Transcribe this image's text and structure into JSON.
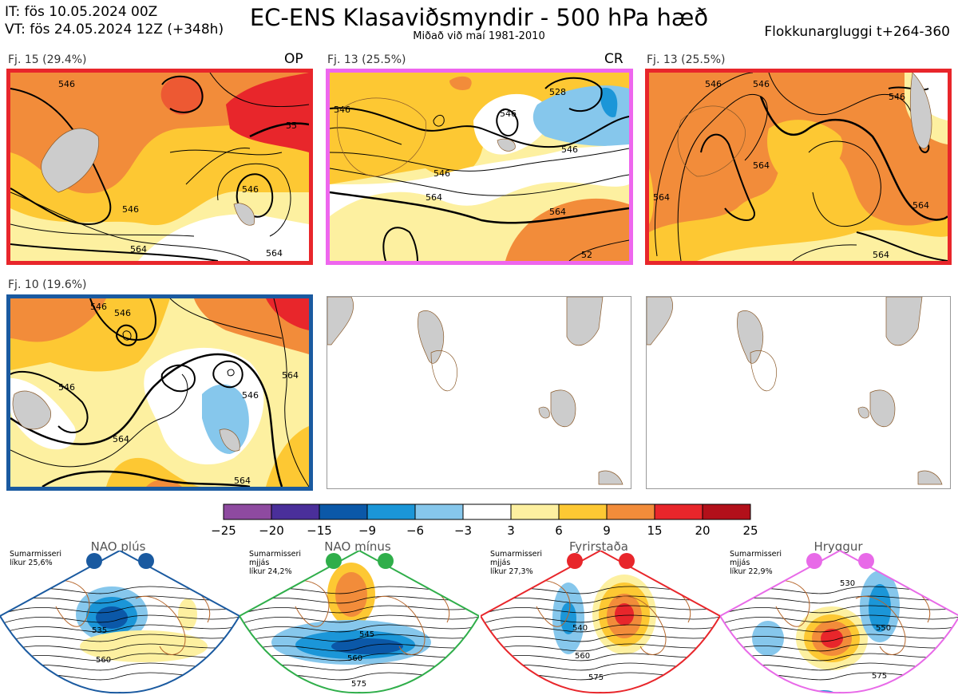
{
  "header": {
    "it_line": "IT: fös 10.05.2024 00Z",
    "vt_line": "VT: fös 24.05.2024 12Z  (+348h)",
    "title": "EC-ENS Klasaviðsmyndir - 500 hPa hæð",
    "subtitle": "Miðað við maí 1981-2010",
    "window": "Flokkunargluggi t+264-360"
  },
  "panels": [
    {
      "label": "Fj. 15 (29.4%)",
      "tag": "OP",
      "frame_color": "#e8262b",
      "empty": false
    },
    {
      "label": "Fj. 13 (25.5%)",
      "tag": "CR",
      "frame_color": "#ee66ee",
      "empty": false
    },
    {
      "label": "Fj. 13 (25.5%)",
      "tag": "",
      "frame_color": "#e8262b",
      "empty": false
    },
    {
      "label": "Fj. 10 (19.6%)",
      "tag": "",
      "frame_color": "#1a5aa0",
      "empty": false
    },
    {
      "label": "",
      "tag": "",
      "frame_color": "#999999",
      "empty": true
    },
    {
      "label": "",
      "tag": "",
      "frame_color": "#999999",
      "empty": true
    }
  ],
  "contour_labels": {
    "p1": [
      "546",
      "546",
      "546",
      "564",
      "564",
      "55"
    ],
    "p2": [
      "546",
      "546",
      "528",
      "546",
      "546",
      "564",
      "564",
      "52"
    ],
    "p3": [
      "546",
      "546",
      "546",
      "564",
      "564",
      "564",
      "564"
    ],
    "p4": [
      "546",
      "546",
      "546",
      "546",
      "564",
      "564",
      "564"
    ]
  },
  "colorbar": {
    "ticks": [
      "−25",
      "−20",
      "−15",
      "−9",
      "−6",
      "−3",
      "3",
      "6",
      "9",
      "15",
      "20",
      "25"
    ],
    "colors": [
      "#8e4aa0",
      "#4a2f9a",
      "#0b58a8",
      "#1b96d8",
      "#86c7ec",
      "#ffffff",
      "#fdf0a0",
      "#fdc833",
      "#f28c3a",
      "#e8262b",
      "#b2101a"
    ]
  },
  "regimes": [
    {
      "title": "NAO plús",
      "season": "Sumarmisseri",
      "mid": "",
      "prob": "líkur 25,6%",
      "color": "#1a5aa0",
      "labels": [
        "535",
        "560"
      ]
    },
    {
      "title": "NAO mínus",
      "season": "Sumarmisseri",
      "mid": "mjjás",
      "prob": "líkur 24,2%",
      "color": "#2fae4a",
      "labels": [
        "545",
        "560",
        "575"
      ]
    },
    {
      "title": "Fyrirstaða",
      "season": "Sumarmisseri",
      "mid": "mjjás",
      "prob": "líkur 27,3%",
      "color": "#e8262b",
      "labels": [
        "540",
        "560",
        "575"
      ]
    },
    {
      "title": "Hryggur",
      "season": "Sumarmisseri",
      "mid": "mjjás",
      "prob": "líkur 22,9%",
      "color": "#e86ae8",
      "labels": [
        "530",
        "550",
        "575"
      ]
    }
  ],
  "regime_prefix_line2": "mjjás"
}
